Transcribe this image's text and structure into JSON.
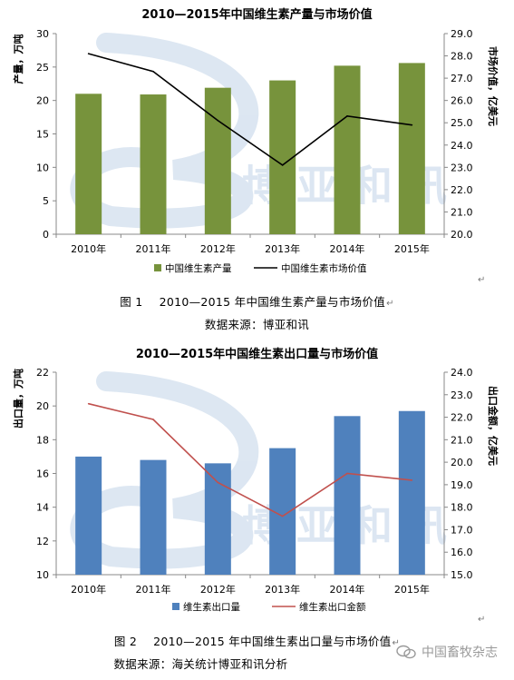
{
  "chart_data": [
    {
      "type": "bar+line",
      "title": "2010—2015年中国维生素产量与市场价值",
      "categories": [
        "2010年",
        "2011年",
        "2012年",
        "2013年",
        "2014年",
        "2015年"
      ],
      "series": [
        {
          "name": "中国维生素产量",
          "kind": "bar",
          "axis": "left",
          "color": "#77933C",
          "values": [
            21.0,
            20.9,
            21.9,
            23.0,
            25.2,
            25.6
          ]
        },
        {
          "name": "中国维生素市场价值",
          "kind": "line",
          "axis": "right",
          "color": "#000000",
          "values": [
            28.1,
            27.3,
            25.1,
            23.1,
            25.3,
            24.9
          ]
        }
      ],
      "ylabel": "产量，万吨",
      "y2label": "市场价值，亿美元",
      "ylim": [
        0,
        30
      ],
      "yticks": [
        "0",
        "5",
        "10",
        "15",
        "20",
        "25",
        "30"
      ],
      "y2lim": [
        20.0,
        29.0
      ],
      "y2ticks": [
        "20.0",
        "21.0",
        "22.0",
        "23.0",
        "24.0",
        "25.0",
        "26.0",
        "27.0",
        "28.0",
        "29.0"
      ],
      "grid": false,
      "legend": "bottom"
    },
    {
      "type": "bar+line",
      "title": "2010—2015年中国维生素出口量与市场价值",
      "categories": [
        "2010年",
        "2011年",
        "2012年",
        "2013年",
        "2014年",
        "2015年"
      ],
      "series": [
        {
          "name": "维生素出口量",
          "kind": "bar",
          "axis": "left",
          "color": "#4F81BD",
          "values": [
            17.0,
            16.8,
            16.6,
            17.5,
            19.4,
            19.7
          ]
        },
        {
          "name": "维生素出口金额",
          "kind": "line",
          "axis": "right",
          "color": "#C0504D",
          "values": [
            22.6,
            21.9,
            19.1,
            17.6,
            19.5,
            19.2
          ]
        }
      ],
      "ylabel": "出口量，万吨",
      "y2label": "出口金额，亿美元",
      "ylim": [
        10,
        22
      ],
      "yticks": [
        "10",
        "12",
        "14",
        "16",
        "18",
        "20",
        "22"
      ],
      "y2lim": [
        15.0,
        24.0
      ],
      "y2ticks": [
        "15.0",
        "16.0",
        "17.0",
        "18.0",
        "19.0",
        "20.0",
        "21.0",
        "22.0",
        "23.0",
        "24.0"
      ],
      "grid": false,
      "legend": "bottom"
    }
  ],
  "captions": [
    {
      "fig": "图 1",
      "text": "2010—2015 年中国维生素产量与市场价值",
      "source": "数据来源：博亚和讯"
    },
    {
      "fig": "图 2",
      "text": "2010—2015 年中国维生素出口量与市场价值",
      "source": "数据来源：海关统计博亚和讯分析"
    }
  ],
  "watermark": {
    "logo_text": "博亚和讯",
    "wechat": "中国畜牧杂志"
  },
  "paragraph_mark": "↵"
}
